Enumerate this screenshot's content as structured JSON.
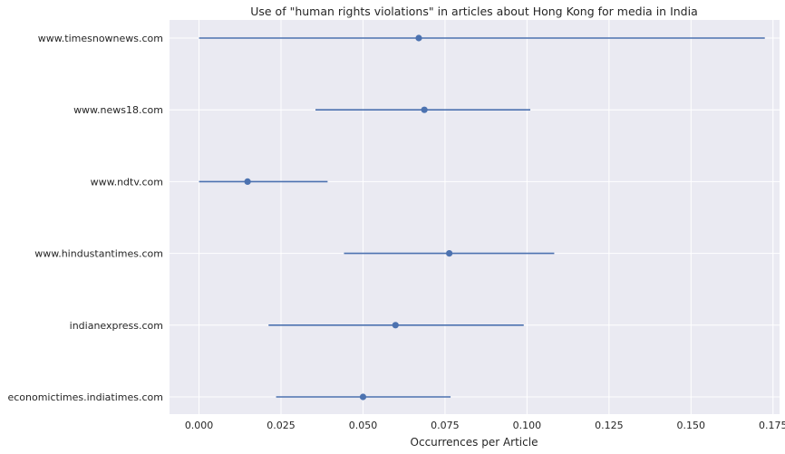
{
  "chart_data": {
    "type": "scatter",
    "title": "Use of \"human rights violations\" in articles about Hong Kong for media in India",
    "xlabel": "Occurrences per Article",
    "ylabel": "",
    "xlim": [
      -0.009,
      0.177
    ],
    "x_ticks": [
      0.0,
      0.025,
      0.05,
      0.075,
      0.1,
      0.125,
      0.15,
      0.175
    ],
    "x_tick_labels": [
      "0.000",
      "0.025",
      "0.050",
      "0.075",
      "0.100",
      "0.125",
      "0.150",
      "0.175"
    ],
    "grid": true,
    "categories": [
      "www.timesnownews.com",
      "www.news18.com",
      "www.ndtv.com",
      "www.hindustantimes.com",
      "indianexpress.com",
      "economictimes.indiatimes.com"
    ],
    "values": [
      0.067,
      0.0687,
      0.0148,
      0.0763,
      0.0599,
      0.05
    ],
    "ci_low": [
      0.0,
      0.0355,
      0.0,
      0.0442,
      0.0212,
      0.0235
    ],
    "ci_high": [
      0.1725,
      0.101,
      0.0392,
      0.1083,
      0.099,
      0.0767
    ],
    "colors": {
      "marker": "#4c72b0",
      "plot_background": "#eaeaf2",
      "grid": "#ffffff"
    }
  }
}
